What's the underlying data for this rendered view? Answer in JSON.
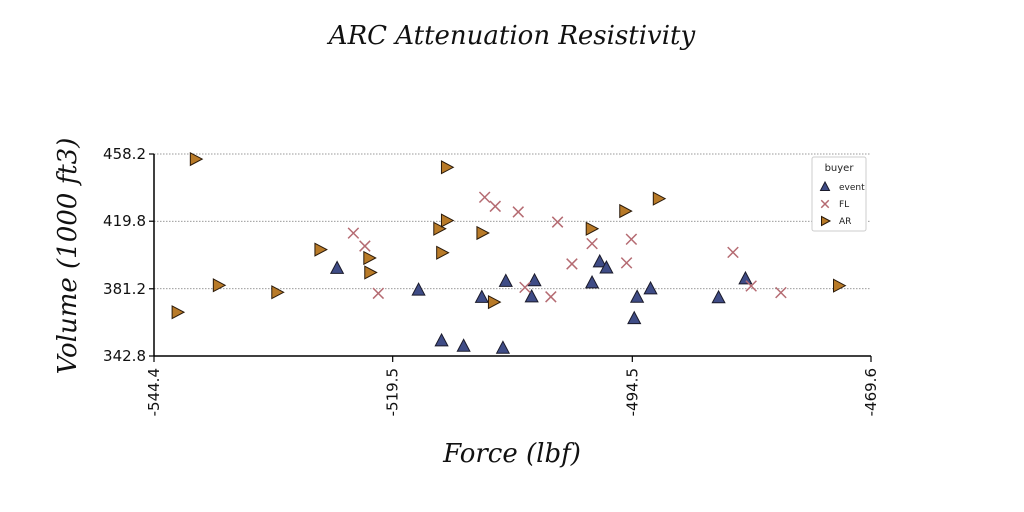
{
  "chart_data": {
    "type": "scatter",
    "title": "ARC Attenuation Resistivity",
    "xlabel": "Force (lbf)",
    "ylabel": "Volume (1000 ft3)",
    "xlim": [
      -544.4,
      -469.6
    ],
    "ylim": [
      342.8,
      458.2
    ],
    "xticks": [
      "-544.4",
      "-519.5",
      "-494.5",
      "-469.6"
    ],
    "yticks": [
      "342.8",
      "381.2",
      "419.8",
      "458.2"
    ],
    "grid": "horizontal dotted",
    "legend": {
      "title": "buyer",
      "placement": "top-right"
    },
    "series": [
      {
        "name": "event",
        "marker": "triangle-up",
        "color": "#3f4c86",
        "x": [
          -525.3,
          -516.8,
          -514.4,
          -510.2,
          -512.1,
          -508.0,
          -507.7,
          -505.0,
          -504.7,
          -498.7,
          -497.9,
          -497.2,
          -494.3,
          -494.0,
          -492.6,
          -485.5,
          -482.7
        ],
        "y": [
          392.8,
          380.4,
          351.4,
          376.2,
          348.3,
          347.2,
          385.4,
          376.5,
          385.7,
          384.5,
          396.5,
          393.0,
          364.1,
          376.3,
          381.1,
          376.0,
          386.8
        ]
      },
      {
        "name": "FL",
        "marker": "x",
        "color": "#b56b72",
        "x": [
          -523.6,
          -522.4,
          -521.0,
          -509.9,
          -508.8,
          -506.4,
          -505.7,
          -503.0,
          -502.3,
          -500.8,
          -498.7,
          -495.1,
          -494.6,
          -484.0,
          -482.1,
          -479.0
        ],
        "y": [
          413.0,
          405.6,
          378.6,
          433.5,
          428.3,
          425.1,
          382.0,
          376.6,
          419.3,
          395.4,
          407.0,
          396.0,
          409.5,
          402.0,
          382.8,
          379.0
        ]
      },
      {
        "name": "AR",
        "marker": "triangle-right",
        "color": "#b87a28",
        "x": [
          -542.0,
          -540.1,
          -537.7,
          -531.6,
          -527.1,
          -522.0,
          -521.9,
          -514.7,
          -514.4,
          -513.9,
          -513.9,
          -510.2,
          -509.0,
          -498.8,
          -495.3,
          -491.8,
          -473.0
        ],
        "y": [
          367.8,
          455.3,
          383.2,
          379.2,
          403.6,
          398.8,
          390.5,
          415.5,
          401.8,
          450.6,
          420.2,
          413.1,
          373.6,
          415.5,
          425.6,
          432.7,
          383.0
        ]
      }
    ]
  }
}
